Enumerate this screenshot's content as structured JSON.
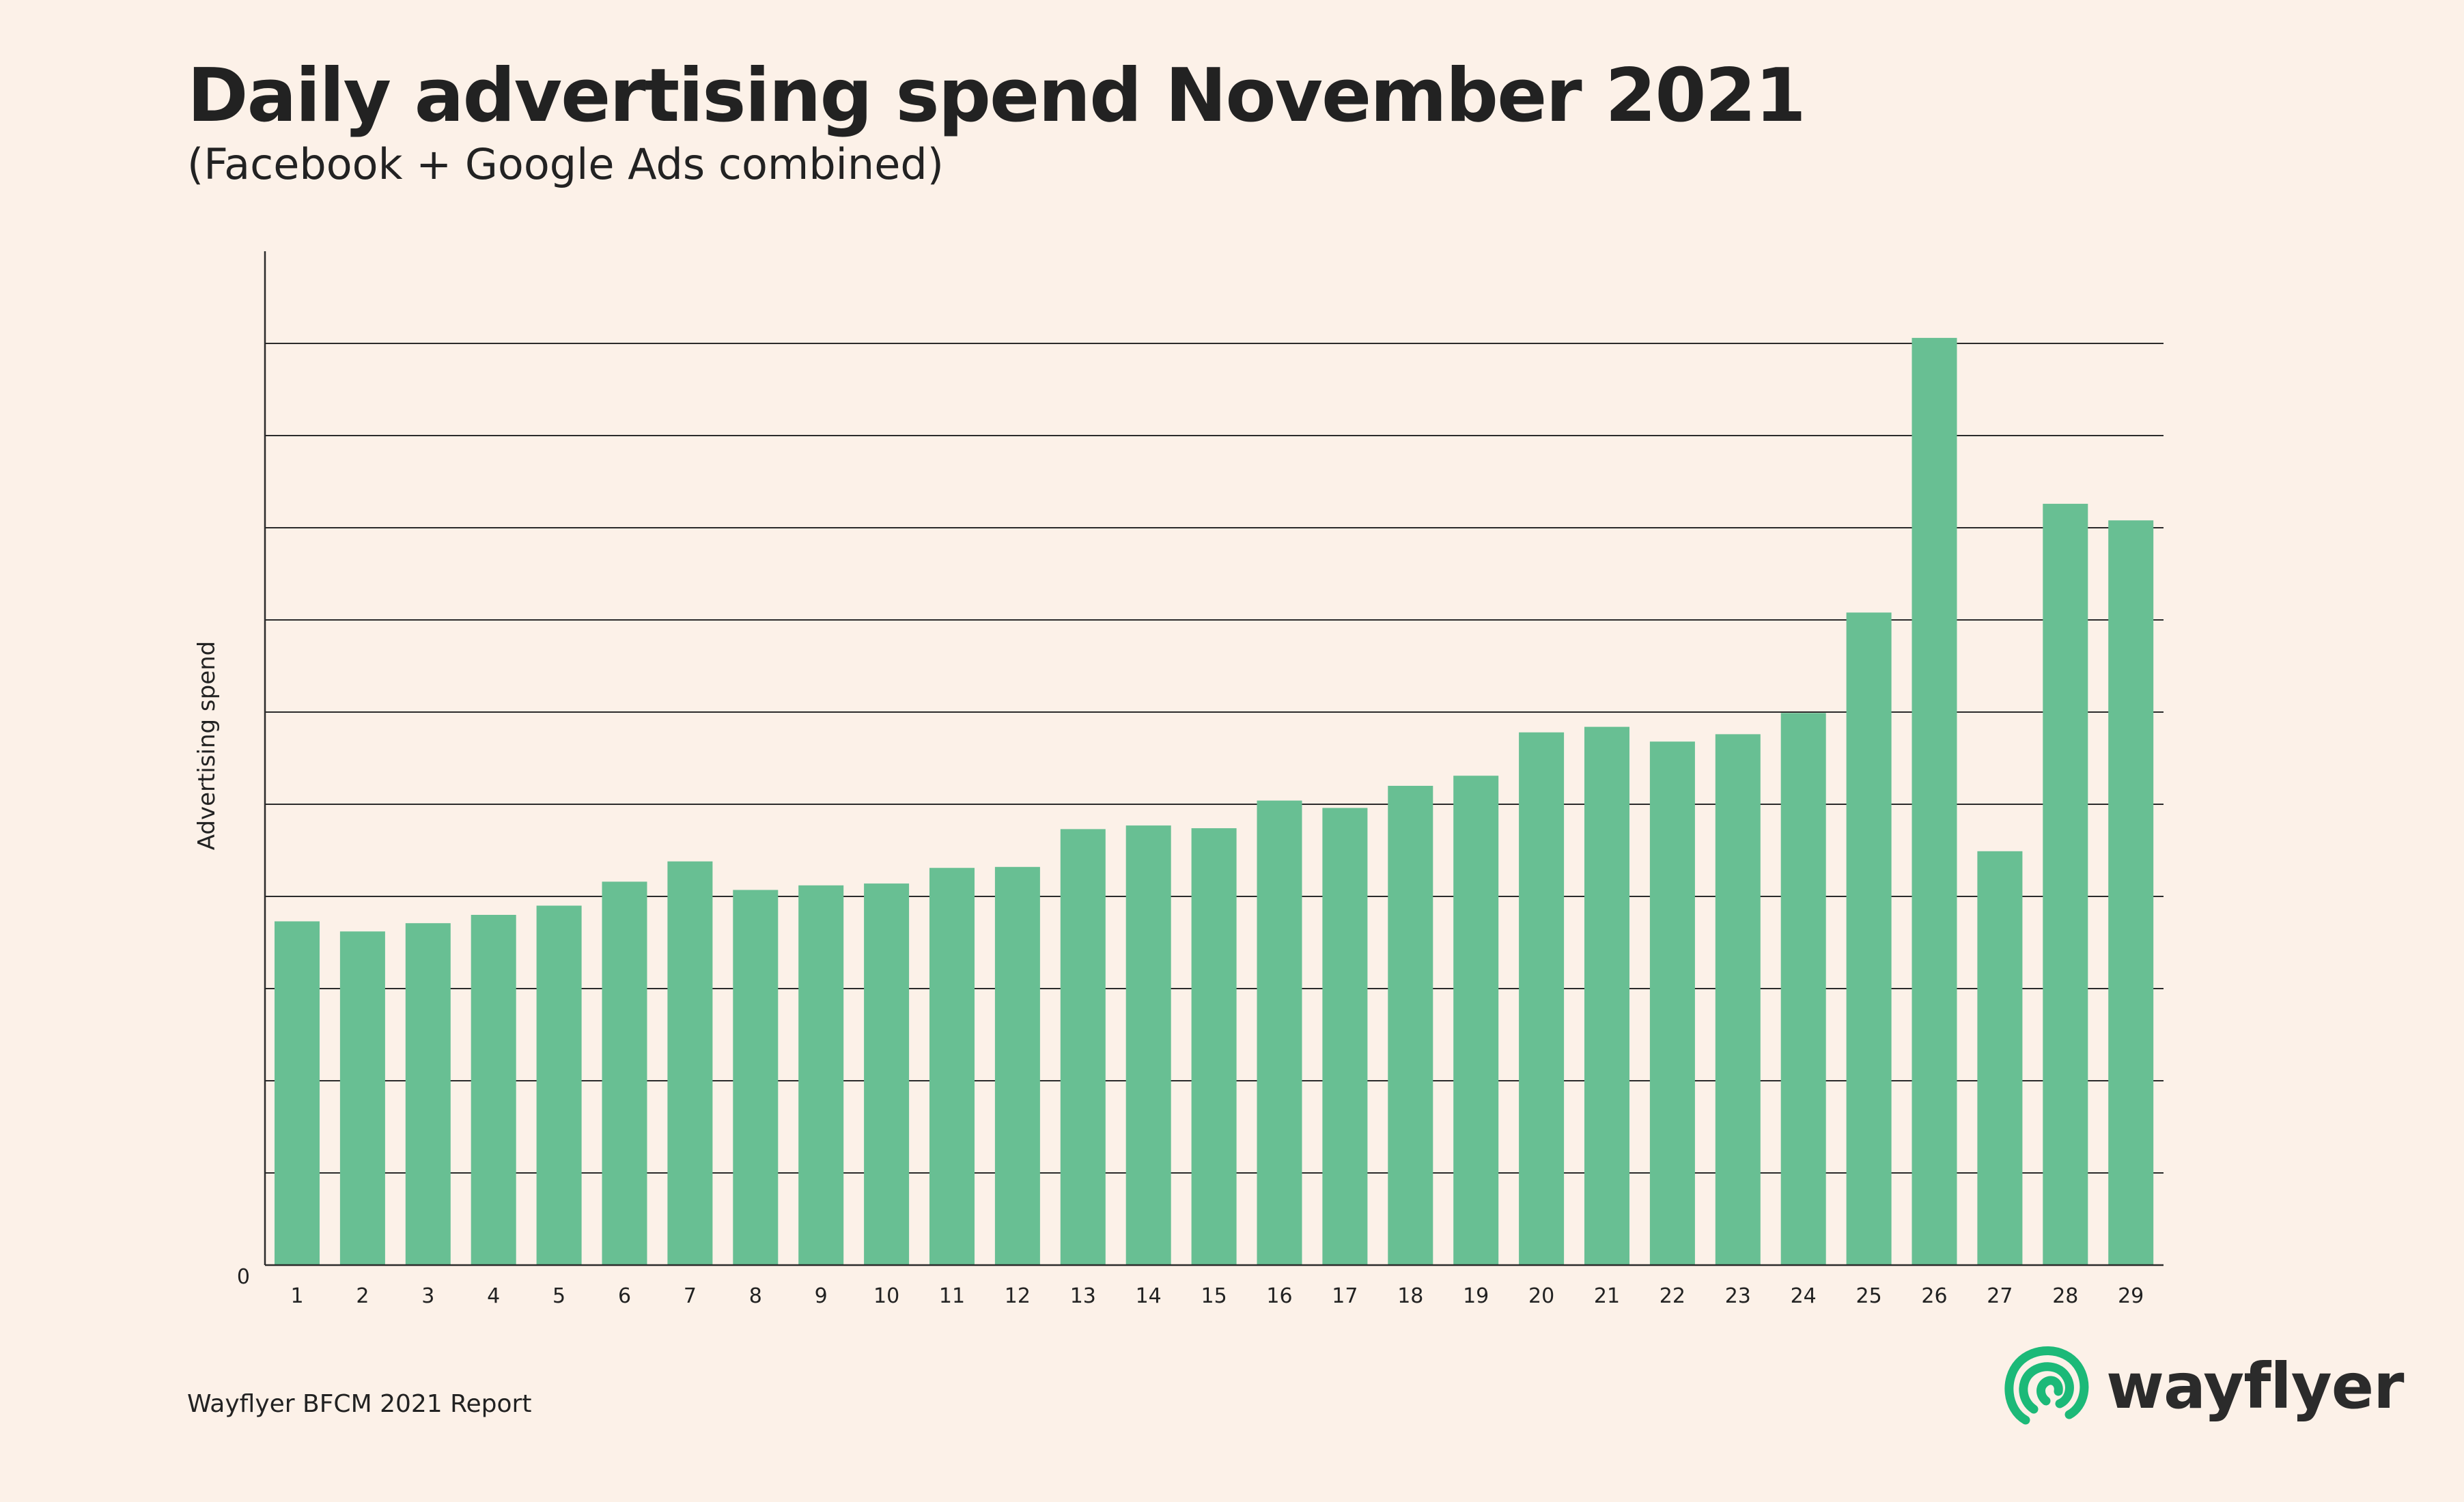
{
  "title": "Daily advertising spend November 2021",
  "subtitle": "(Facebook + Google Ads combined)",
  "footer": "Wayflyer BFCM 2021 Report",
  "brand": {
    "name": "wayflyer",
    "logo_icon": "wayflyer-logo-icon"
  },
  "colors": {
    "background": "#fcf1e8",
    "bar": "#68bf93",
    "grid": "#2b2b2b",
    "text": "#222222",
    "brand_green": "#1cb978"
  },
  "chart_data": {
    "type": "bar",
    "title": "Daily advertising spend November 2021",
    "subtitle": "(Facebook + Google Ads combined)",
    "xlabel": "",
    "ylabel": "Advertising spend",
    "y_tick_labels": [
      "0"
    ],
    "ylim": [
      0,
      11
    ],
    "grid": true,
    "categories": [
      "1",
      "2",
      "3",
      "4",
      "5",
      "6",
      "7",
      "8",
      "9",
      "10",
      "11",
      "12",
      "13",
      "14",
      "15",
      "16",
      "17",
      "18",
      "19",
      "20",
      "21",
      "22",
      "23",
      "24",
      "25",
      "26",
      "27",
      "28",
      "29"
    ],
    "values": [
      3.73,
      3.62,
      3.71,
      3.8,
      3.9,
      4.16,
      4.38,
      4.07,
      4.12,
      4.14,
      4.31,
      4.32,
      4.73,
      4.77,
      4.74,
      5.04,
      4.96,
      5.2,
      5.31,
      5.78,
      5.84,
      5.68,
      5.76,
      5.99,
      7.08,
      10.06,
      4.49,
      8.26,
      8.08
    ]
  }
}
